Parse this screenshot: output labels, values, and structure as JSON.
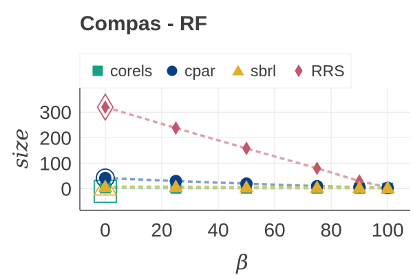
{
  "chart_data": {
    "type": "line",
    "title": "Compas - RF",
    "xlabel": "β",
    "ylabel": "size",
    "x": [
      0,
      25,
      50,
      75,
      90,
      100
    ],
    "xlim": [
      -9,
      108
    ],
    "ylim": [
      -85,
      395
    ],
    "xticks": [
      0,
      20,
      40,
      60,
      80,
      100
    ],
    "yticks": [
      0,
      100,
      200,
      300
    ],
    "grid": true,
    "legend_position": "top",
    "series": [
      {
        "name": "corels",
        "marker": "square",
        "color": "#16a085",
        "line_color": "#a7d6b5",
        "values": [
          3,
          2,
          2,
          2,
          2,
          2
        ]
      },
      {
        "name": "cpar",
        "marker": "circle",
        "color": "#0a3f86",
        "line_color": "#7e9fc6",
        "values": [
          42,
          30,
          20,
          10,
          6,
          3
        ]
      },
      {
        "name": "sbrl",
        "marker": "triangle",
        "color": "#e3ad2c",
        "line_color": "#cccc66",
        "values": [
          8,
          8,
          6,
          5,
          4,
          3
        ]
      },
      {
        "name": "RRS",
        "marker": "diamond",
        "color": "#c0586a",
        "line_color": "#dfa2ad",
        "values": [
          320,
          238,
          158,
          80,
          30,
          5
        ]
      }
    ],
    "highlighted_x": 0
  }
}
